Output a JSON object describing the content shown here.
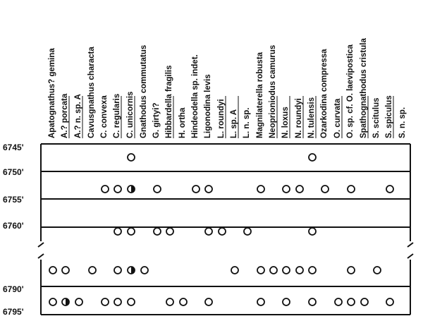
{
  "diagram": {
    "depth_labels": [
      "6745'",
      "6750'",
      "6755'",
      "6760'",
      "6790'",
      "6795'"
    ],
    "taxa": [
      "Apatognathus? gemina",
      "A.? porcata",
      "A.? n. sp. A",
      "Cavusgnathus characta",
      "C. convexa",
      "C. regularis",
      "C. unicornis",
      "Gnathodus commutatus",
      "G. girtyi?",
      "Hibbardella fragilis",
      "H. ortha",
      "Hindeodella sp. indet.",
      "Ligonodina levis",
      "L. roundyi",
      "L. sp. A",
      "L. n. sp.",
      "Magnilaterella robusta",
      "Neoprioniodus camurus",
      "N. loxus",
      "N. roundyi",
      "N. tulensis",
      "Ozarkodina compressa",
      "O. curvata",
      "O. sp. cf. O. laevipostica",
      "Spathognathodus cristula",
      "S. scitulus",
      "S. spiculus",
      "S. n. sp."
    ],
    "underlined_taxa": [
      1,
      2,
      5,
      6,
      9,
      13,
      14,
      17,
      18,
      19,
      20,
      22,
      24,
      26
    ],
    "sample_rows": [
      {
        "occurrences": [
          6,
          20
        ],
        "half_filled": []
      },
      {
        "occurrences": [
          4,
          5,
          6,
          8,
          11,
          12,
          16,
          18,
          19,
          21,
          23,
          26
        ],
        "half_filled": [
          6
        ]
      },
      {
        "occurrences": [
          5,
          6,
          8,
          9,
          12,
          13,
          15,
          20
        ],
        "half_filled": []
      },
      {
        "occurrences": [
          0,
          1,
          3,
          5,
          6,
          7,
          14,
          16,
          17,
          18,
          19,
          20,
          23,
          25
        ],
        "half_filled": [
          6
        ]
      },
      {
        "occurrences": [
          0,
          1,
          2,
          4,
          5,
          6,
          9,
          10,
          12,
          16,
          18,
          20,
          22,
          23,
          24,
          26
        ],
        "half_filled": [
          1
        ]
      }
    ]
  }
}
